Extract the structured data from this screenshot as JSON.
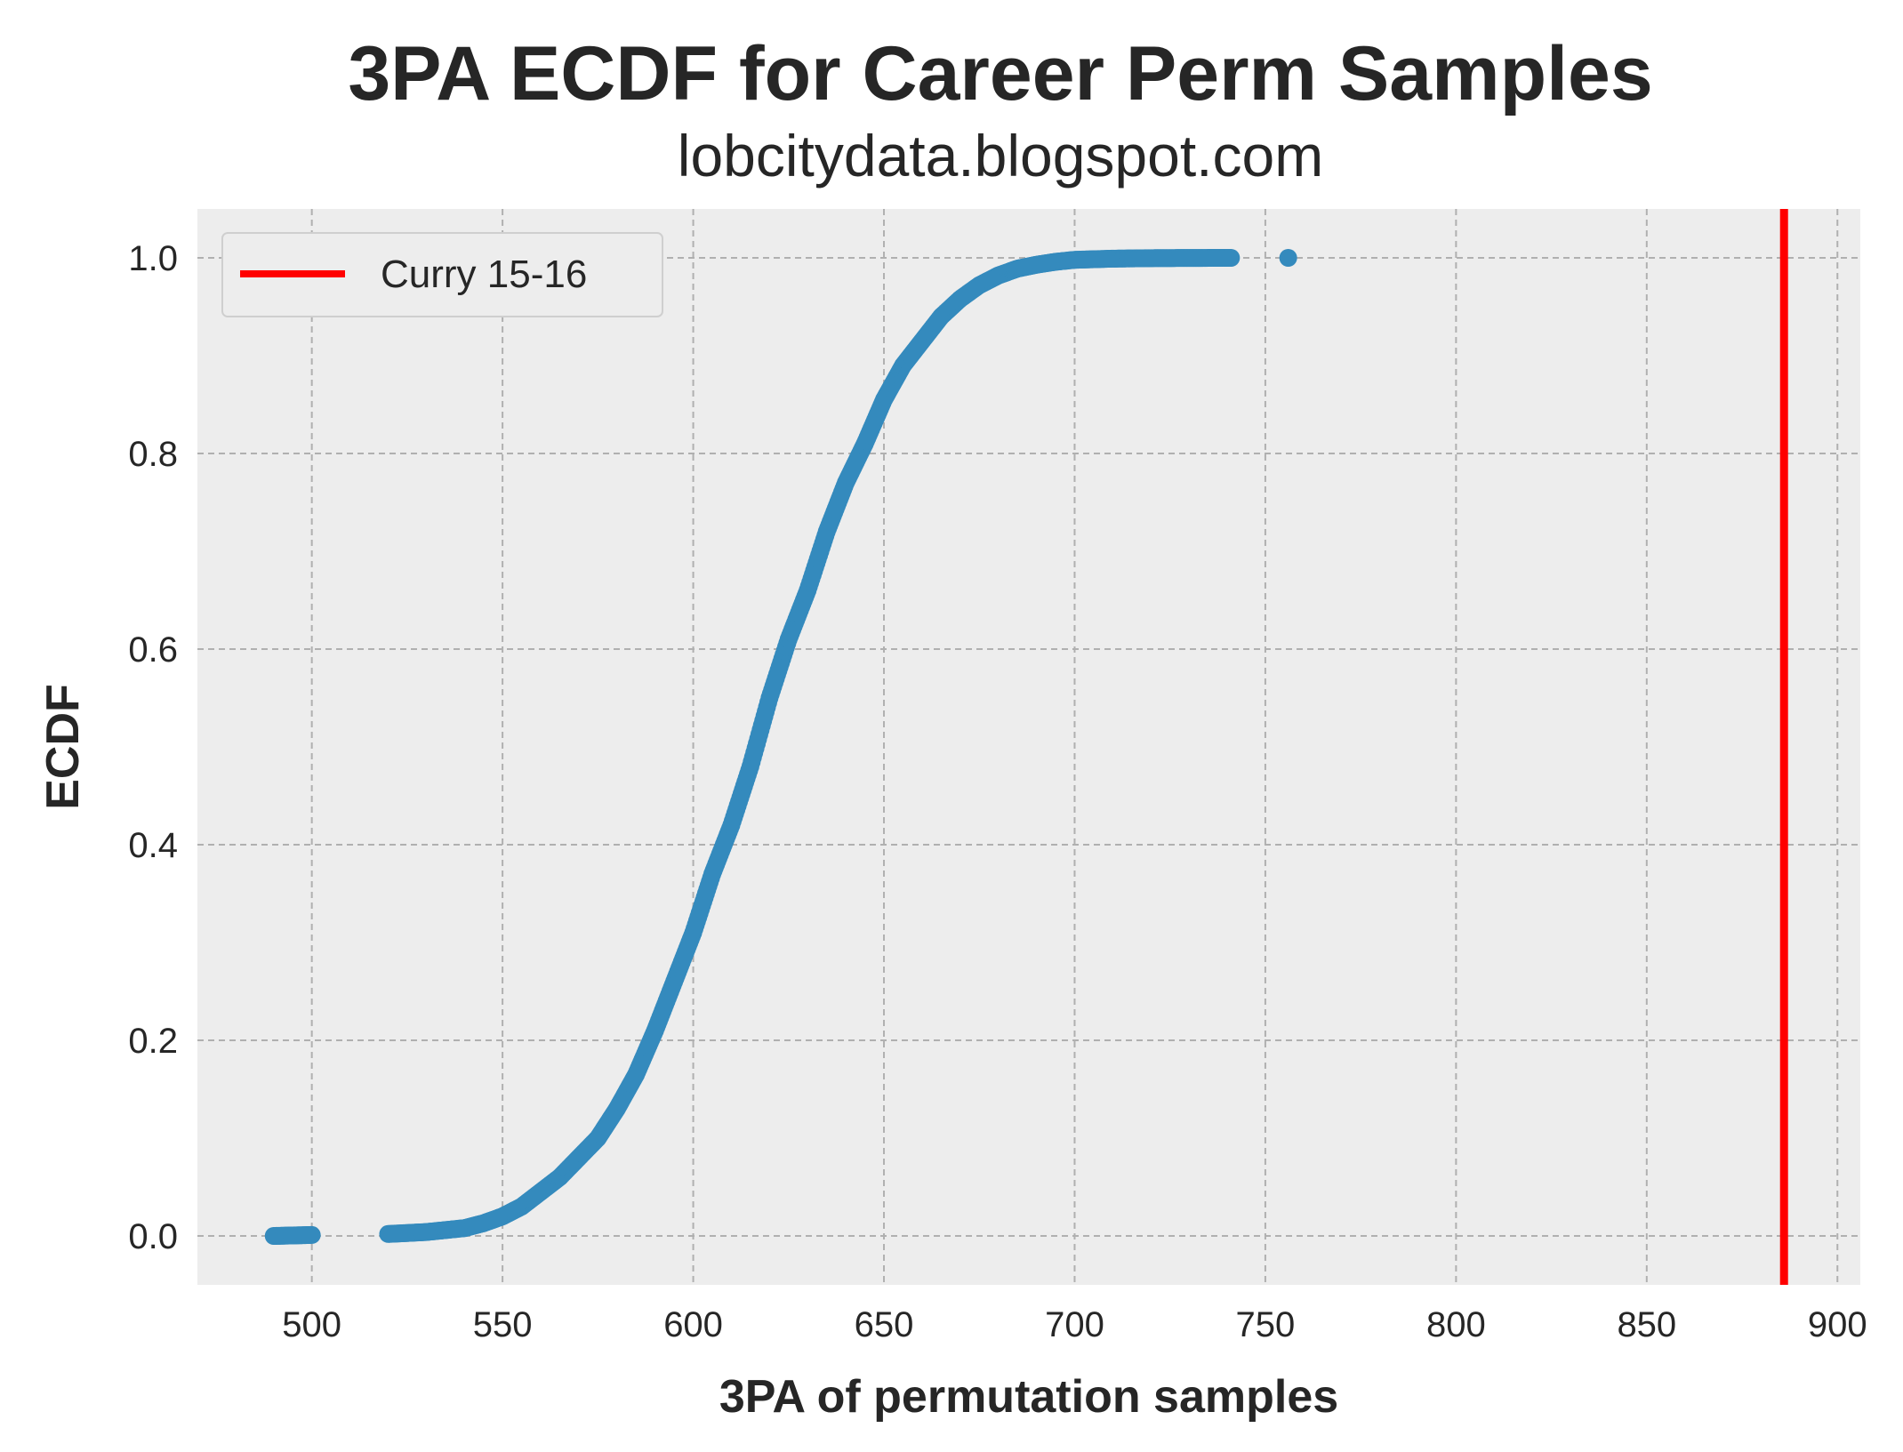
{
  "chart_data": {
    "type": "scatter",
    "title": "3PA ECDF for Career Perm Samples",
    "subtitle": "lobcitydata.blogspot.com",
    "xlabel": "3PA of permutation samples",
    "ylabel": "ECDF",
    "xlim": [
      470,
      906
    ],
    "ylim": [
      -0.05,
      1.05
    ],
    "x_ticks": [
      500,
      550,
      600,
      650,
      700,
      750,
      800,
      850,
      900
    ],
    "y_ticks": [
      0.0,
      0.2,
      0.4,
      0.6,
      0.8,
      1.0
    ],
    "x_tick_labels": [
      "500",
      "550",
      "600",
      "650",
      "700",
      "750",
      "800",
      "850",
      "900"
    ],
    "y_tick_labels": [
      "0.0",
      "0.2",
      "0.4",
      "0.6",
      "0.8",
      "1.0"
    ],
    "grid": true,
    "legend_position": "top-left",
    "series": [
      {
        "kind": "points",
        "color": "#348ABD",
        "points": [
          [
            490,
            0.0
          ],
          [
            500,
            0.001
          ],
          [
            520,
            0.002
          ],
          [
            530,
            0.004
          ],
          [
            540,
            0.008
          ],
          [
            545,
            0.013
          ],
          [
            550,
            0.02
          ],
          [
            555,
            0.03
          ],
          [
            560,
            0.045
          ],
          [
            565,
            0.06
          ],
          [
            570,
            0.08
          ],
          [
            575,
            0.1
          ],
          [
            580,
            0.13
          ],
          [
            585,
            0.165
          ],
          [
            590,
            0.21
          ],
          [
            595,
            0.26
          ],
          [
            600,
            0.31
          ],
          [
            605,
            0.37
          ],
          [
            610,
            0.42
          ],
          [
            615,
            0.48
          ],
          [
            620,
            0.55
          ],
          [
            625,
            0.61
          ],
          [
            630,
            0.66
          ],
          [
            635,
            0.72
          ],
          [
            640,
            0.77
          ],
          [
            645,
            0.81
          ],
          [
            650,
            0.855
          ],
          [
            655,
            0.89
          ],
          [
            660,
            0.915
          ],
          [
            665,
            0.94
          ],
          [
            670,
            0.958
          ],
          [
            675,
            0.972
          ],
          [
            680,
            0.982
          ],
          [
            685,
            0.989
          ],
          [
            690,
            0.993
          ],
          [
            695,
            0.996
          ],
          [
            700,
            0.998
          ],
          [
            710,
            0.9992
          ],
          [
            720,
            0.9997
          ],
          [
            730,
            0.9999
          ],
          [
            741,
            1.0
          ],
          [
            756,
            1.0
          ]
        ]
      },
      {
        "kind": "vline",
        "name": "Curry 15-16",
        "x": 886,
        "color": "#ff0000"
      }
    ],
    "colors": {
      "plot_background": "#EDEDED",
      "grid": "#b0b0b0",
      "points": "#348ABD",
      "reference_line": "#ff0000",
      "text": "#262626"
    }
  }
}
